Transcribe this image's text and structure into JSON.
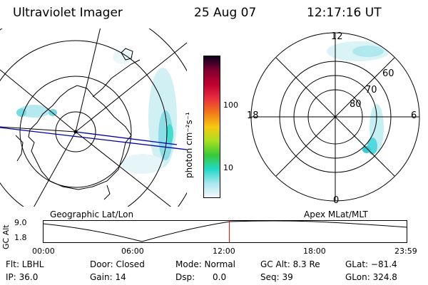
{
  "header": {
    "instrument": "Ultraviolet Imager",
    "date": "25 Aug 07",
    "time": "12:17:16 UT"
  },
  "geo_panel": {
    "label": "Geographic Lat/Lon"
  },
  "mag_panel": {
    "label": "Apex MLat/MLT",
    "mlt_labels": {
      "top": "12",
      "bottom": "0",
      "left": "18",
      "right": "6"
    },
    "lat_labels": [
      "60",
      "70",
      "80"
    ]
  },
  "colorbar": {
    "unit_label": "photon cm⁻²s⁻¹",
    "ticks": [
      "100",
      "10"
    ],
    "stops": [
      "#0a0020",
      "#800030",
      "#c00030",
      "#e83040",
      "#f07818",
      "#f8c810",
      "#a8e020",
      "#38c838",
      "#20d8c8",
      "#a8e8f0",
      "#f4f8fa"
    ]
  },
  "altitude_plot": {
    "ylabel": "GC Alt",
    "yticks": [
      "9.0",
      "1.8"
    ],
    "xticks": [
      "00:00",
      "06:00",
      "12:00",
      "18:00",
      "23:59"
    ],
    "current_time_fraction": 0.512
  },
  "footer": {
    "flt": "Flt: LBHL",
    "ip": "IP: 36.0",
    "door": "Door: Closed",
    "gain": "Gain: 14",
    "mode": "Mode: Normal",
    "dsp_label": "Dsp:",
    "dsp_value": "0.0",
    "gc_alt": "GC Alt: 8.3 Re",
    "seq": "Seq: 39",
    "glat": "GLat: −81.4",
    "glon": "GLon: 324.8"
  }
}
